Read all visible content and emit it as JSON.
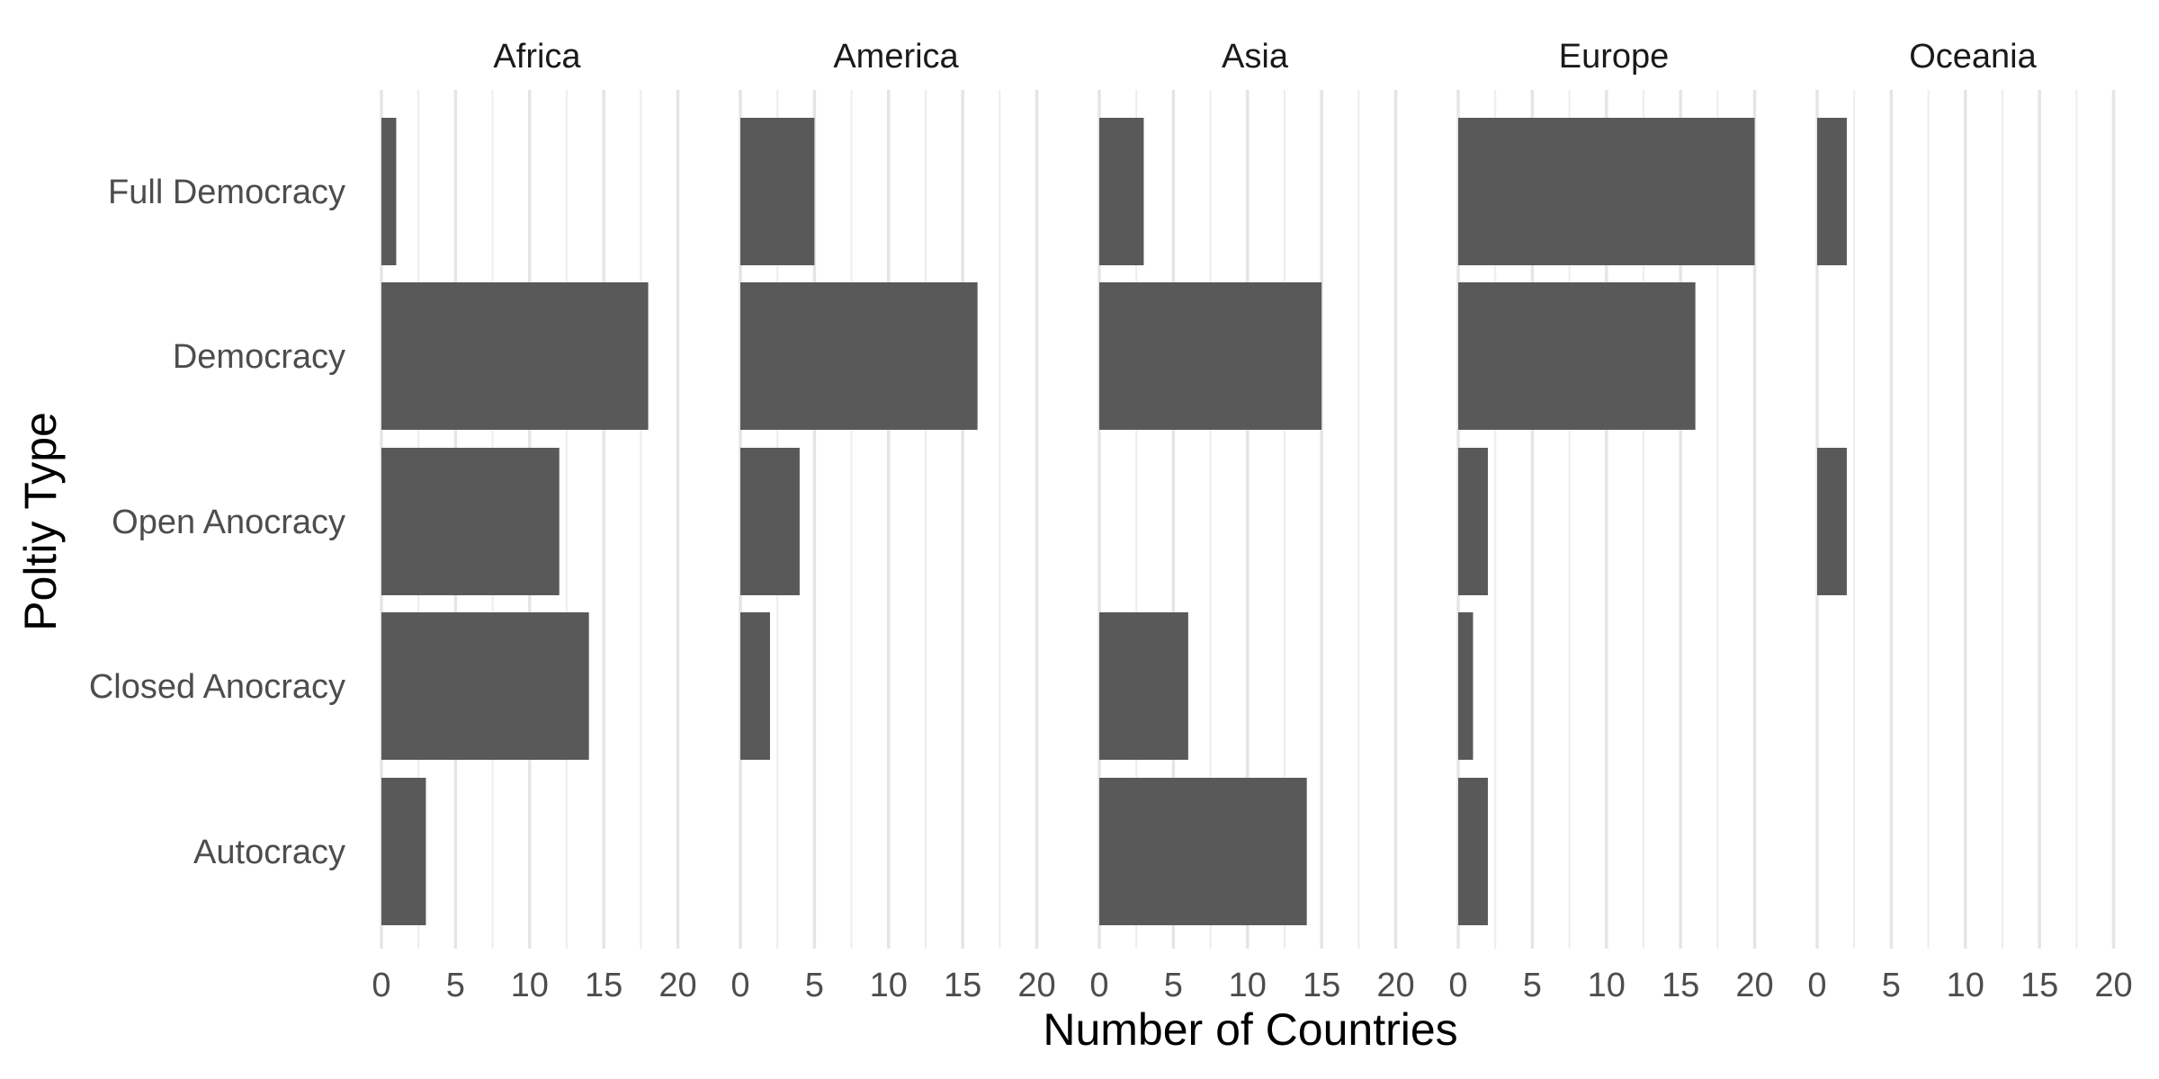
{
  "chart_data": {
    "type": "bar",
    "orientation": "horizontal",
    "facet_by": "continent",
    "facets": [
      "Africa",
      "America",
      "Asia",
      "Europe",
      "Oceania"
    ],
    "categories": [
      "Full Democracy",
      "Democracy",
      "Open Anocracy",
      "Closed Anocracy",
      "Autocracy"
    ],
    "series": [
      {
        "facet": "Africa",
        "values": [
          1,
          18,
          12,
          14,
          3
        ]
      },
      {
        "facet": "America",
        "values": [
          5,
          16,
          4,
          2,
          0
        ]
      },
      {
        "facet": "Asia",
        "values": [
          3,
          15,
          0,
          6,
          14
        ]
      },
      {
        "facet": "Europe",
        "values": [
          20,
          16,
          2,
          1,
          2
        ]
      },
      {
        "facet": "Oceania",
        "values": [
          2,
          0,
          2,
          0,
          0
        ]
      }
    ],
    "xlabel": "Number of Countries",
    "ylabel": "Poltiy Type",
    "xlim": [
      0,
      21
    ],
    "x_ticks": [
      0,
      5,
      10,
      15,
      20
    ],
    "grid": true,
    "legend": "none",
    "bar_color": "#595959"
  }
}
